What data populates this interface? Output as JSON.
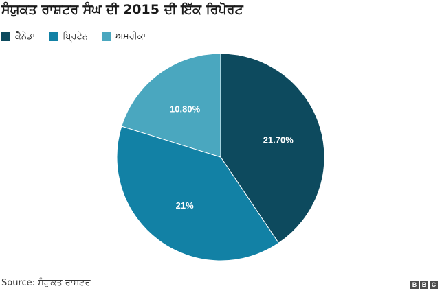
{
  "title": "ਸੰਯੁਕਤ ਰਾਸ਼ਟਰ ਸੰਘ ਦੀ 2015 ਦੀ ਇੱਕ ਰਿਪੋਰਟ",
  "legend": [
    {
      "label": "ਕੈਨੇਡਾ",
      "color": "#0d4a5e"
    },
    {
      "label": "ਬ੍ਰਿਟੇਨ",
      "color": "#1281a5"
    },
    {
      "label": "ਅਮਰੀਕਾ",
      "color": "#4aa7bf"
    }
  ],
  "chart_data": {
    "type": "pie",
    "title": "ਸੰਯੁਕਤ ਰਾਸ਼ਟਰ ਸੰਘ ਦੀ 2015 ਦੀ ਇੱਕ ਰਿਪੋਰਟ",
    "categories": [
      "ਕੈਨੇਡਾ",
      "ਬ੍ਰਿਟੇਨ",
      "ਅਮਰੀਕਾ"
    ],
    "values": [
      21.7,
      21,
      10.8
    ],
    "value_labels": [
      "21.70%",
      "21%",
      "10.80%"
    ],
    "colors": [
      "#0d4a5e",
      "#1281a5",
      "#4aa7bf"
    ],
    "start": "top, clockwise",
    "legend_position": "top-left"
  },
  "source": "Source: ਸੰਯੁਕਤ ਰਾਸ਼ਟਰ",
  "brand": {
    "letters": [
      "B",
      "B",
      "C"
    ]
  }
}
